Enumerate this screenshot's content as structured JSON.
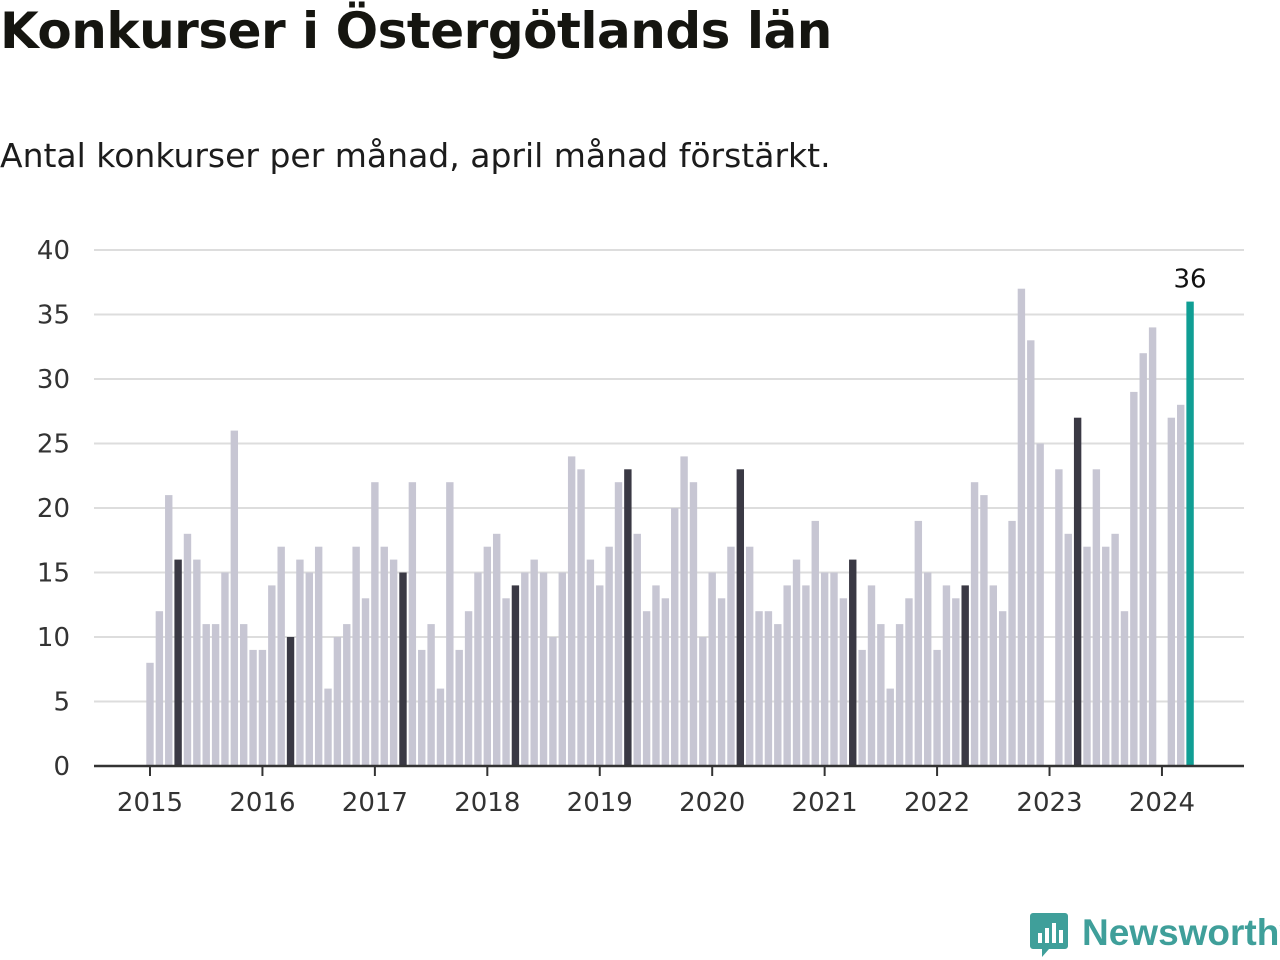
{
  "title": "Konkurser i Östergötlands län",
  "subtitle": "Antal konkurser per månad, april månad förstärkt.",
  "brand": {
    "name": "Newsworthy",
    "icon": "newsworthy-logo-icon",
    "color": "#3f9f9a"
  },
  "colors": {
    "bar": "#c7c6d3",
    "highlight": "#3a3944",
    "latest": "#109e94",
    "grid": "#dddddd",
    "axis": "#333333"
  },
  "chart_data": {
    "type": "bar",
    "title": "Konkurser i Östergötlands län",
    "start": "2015-01",
    "highlight_month": "april",
    "x_tick_labels": [
      "2015",
      "2016",
      "2017",
      "2018",
      "2019",
      "2020",
      "2021",
      "2022",
      "2023",
      "2024"
    ],
    "y_ticks": [
      0,
      5,
      10,
      15,
      20,
      25,
      30,
      35,
      40
    ],
    "ylim": [
      0,
      40
    ],
    "grid": true,
    "values": [
      8,
      12,
      21,
      16,
      18,
      16,
      11,
      11,
      15,
      26,
      11,
      9,
      9,
      14,
      17,
      10,
      16,
      15,
      17,
      6,
      10,
      11,
      17,
      13,
      22,
      17,
      16,
      15,
      22,
      9,
      11,
      6,
      22,
      9,
      12,
      15,
      17,
      18,
      13,
      14,
      15,
      16,
      15,
      10,
      15,
      24,
      23,
      16,
      14,
      17,
      22,
      23,
      18,
      12,
      14,
      13,
      20,
      24,
      22,
      10,
      15,
      13,
      17,
      23,
      17,
      12,
      12,
      11,
      14,
      16,
      14,
      19,
      15,
      15,
      13,
      16,
      9,
      14,
      11,
      6,
      11,
      13,
      19,
      15,
      9,
      14,
      13,
      14,
      22,
      21,
      14,
      12,
      19,
      37,
      33,
      25,
      0,
      23,
      18,
      27,
      17,
      23,
      17,
      18,
      12,
      29,
      32,
      34,
      0,
      27,
      28,
      36
    ],
    "data_labels": [
      {
        "index": 111,
        "text": "36"
      }
    ]
  }
}
